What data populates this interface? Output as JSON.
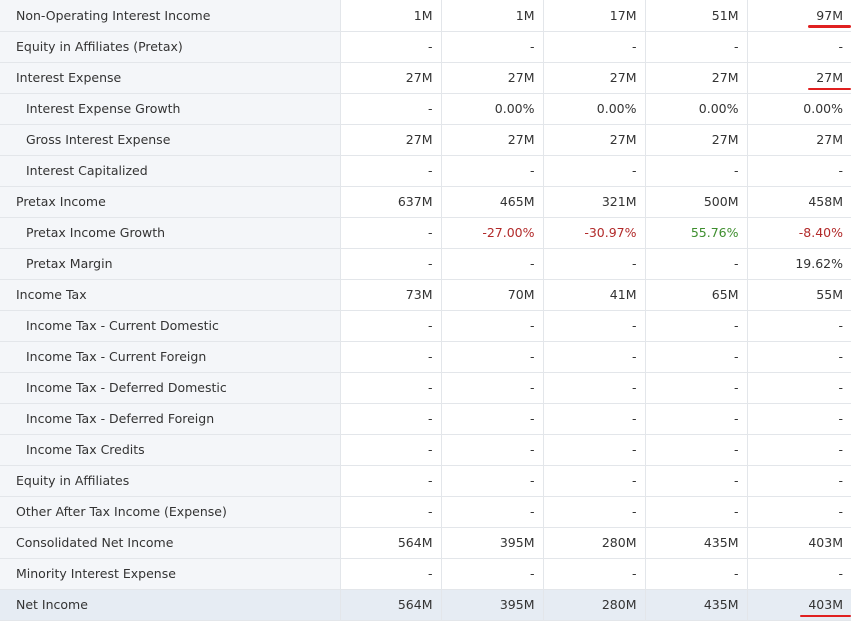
{
  "rows": [
    {
      "label": "Non-Operating Interest Income",
      "values": [
        "1M",
        "1M",
        "17M",
        "51M",
        "97M"
      ],
      "sub": false
    },
    {
      "label": "Equity in Affiliates (Pretax)",
      "values": [
        "-",
        "-",
        "-",
        "-",
        "-"
      ],
      "sub": false
    },
    {
      "label": "Interest Expense",
      "values": [
        "27M",
        "27M",
        "27M",
        "27M",
        "27M"
      ],
      "sub": false
    },
    {
      "label": "Interest Expense Growth",
      "values": [
        "-",
        "0.00%",
        "0.00%",
        "0.00%",
        "0.00%"
      ],
      "sub": true
    },
    {
      "label": "Gross Interest Expense",
      "values": [
        "27M",
        "27M",
        "27M",
        "27M",
        "27M"
      ],
      "sub": true
    },
    {
      "label": "Interest Capitalized",
      "values": [
        "-",
        "-",
        "-",
        "-",
        "-"
      ],
      "sub": true
    },
    {
      "label": "Pretax Income",
      "values": [
        "637M",
        "465M",
        "321M",
        "500M",
        "458M"
      ],
      "sub": false
    },
    {
      "label": "Pretax Income Growth",
      "values": [
        "-",
        "-27.00%",
        "-30.97%",
        "55.76%",
        "-8.40%"
      ],
      "sub": true
    },
    {
      "label": "Pretax Margin",
      "values": [
        "-",
        "-",
        "-",
        "-",
        "19.62%"
      ],
      "sub": true
    },
    {
      "label": "Income Tax",
      "values": [
        "73M",
        "70M",
        "41M",
        "65M",
        "55M"
      ],
      "sub": false
    },
    {
      "label": "Income Tax - Current Domestic",
      "values": [
        "-",
        "-",
        "-",
        "-",
        "-"
      ],
      "sub": true
    },
    {
      "label": "Income Tax - Current Foreign",
      "values": [
        "-",
        "-",
        "-",
        "-",
        "-"
      ],
      "sub": true
    },
    {
      "label": "Income Tax - Deferred Domestic",
      "values": [
        "-",
        "-",
        "-",
        "-",
        "-"
      ],
      "sub": true
    },
    {
      "label": "Income Tax - Deferred Foreign",
      "values": [
        "-",
        "-",
        "-",
        "-",
        "-"
      ],
      "sub": true
    },
    {
      "label": "Income Tax Credits",
      "values": [
        "-",
        "-",
        "-",
        "-",
        "-"
      ],
      "sub": true
    },
    {
      "label": "Equity in Affiliates",
      "values": [
        "-",
        "-",
        "-",
        "-",
        "-"
      ],
      "sub": false
    },
    {
      "label": "Other After Tax Income (Expense)",
      "values": [
        "-",
        "-",
        "-",
        "-",
        "-"
      ],
      "sub": false
    },
    {
      "label": "Consolidated Net Income",
      "values": [
        "564M",
        "395M",
        "280M",
        "435M",
        "403M"
      ],
      "sub": false
    },
    {
      "label": "Minority Interest Expense",
      "values": [
        "-",
        "-",
        "-",
        "-",
        "-"
      ],
      "sub": false
    },
    {
      "label": "Net Income",
      "values": [
        "564M",
        "395M",
        "280M",
        "435M",
        "403M"
      ],
      "sub": false,
      "total": true
    }
  ],
  "colors": {
    "negative": "#b22a2a",
    "positive": "#3e8e2e",
    "annotation": "#e02020"
  },
  "annotations": {
    "underlined_cells": [
      "0.4",
      "2.4",
      "19.4"
    ]
  }
}
